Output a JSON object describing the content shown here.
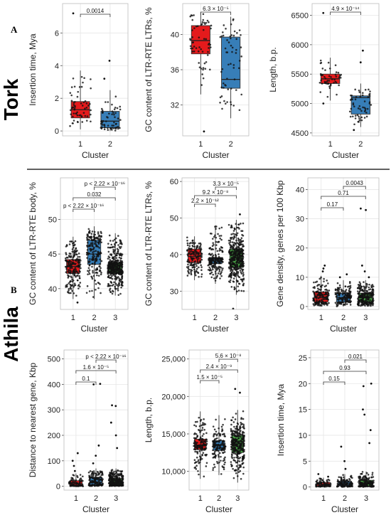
{
  "panel_labels": [
    "A",
    "B"
  ],
  "group_labels": [
    "Tork",
    "Athila"
  ],
  "colors": {
    "cluster_1": "#e41a1c",
    "cluster_2": "#377eb8",
    "cluster_3": "#4daf4a"
  },
  "chart_data": [
    {
      "id": "tork_insertion",
      "type": "box",
      "group": "Tork",
      "xlabel": "Cluster",
      "ylabel": "Insertion time, Mya",
      "categories": [
        "1",
        "2"
      ],
      "ylim": [
        -0.3,
        7.8
      ],
      "yticks": [
        0,
        2,
        4,
        6
      ],
      "ytick_labels": [
        "0",
        "2",
        "4",
        "6"
      ],
      "series": [
        {
          "category": "1",
          "q1": 0.8,
          "median": 1.3,
          "q3": 1.8,
          "whisker_low": 0.1,
          "whisker_high": 3.7,
          "n_points": 60,
          "outliers": [
            7.2
          ]
        },
        {
          "category": "2",
          "q1": 0.2,
          "median": 0.6,
          "q3": 1.2,
          "whisker_low": 0.0,
          "whisker_high": 2.5,
          "n_points": 60,
          "outliers": [
            3.2,
            4.3
          ]
        }
      ],
      "comparisons": [
        {
          "pair": [
            1,
            2
          ],
          "label": "0.0014"
        }
      ]
    },
    {
      "id": "tork_gc_ltr",
      "type": "box",
      "group": "Tork",
      "xlabel": "Cluster",
      "ylabel": "GC content of LTR-RTE LTRs, %",
      "categories": [
        "1",
        "2"
      ],
      "ylim": [
        28.5,
        43.5
      ],
      "yticks": [
        32,
        36,
        40
      ],
      "ytick_labels": [
        "32",
        "36",
        "40"
      ],
      "series": [
        {
          "category": "1",
          "q1": 37.8,
          "median": 39.3,
          "q3": 41.0,
          "whisker_low": 33.2,
          "whisker_high": 42.5,
          "n_points": 60,
          "outliers": [
            29.0
          ]
        },
        {
          "category": "2",
          "q1": 33.9,
          "median": 34.9,
          "q3": 39.7,
          "whisker_low": 30.5,
          "whisker_high": 42.0,
          "n_points": 60,
          "outliers": []
        }
      ],
      "comparisons": [
        {
          "pair": [
            1,
            2
          ],
          "label": "6.3 × 10⁻⁵"
        }
      ]
    },
    {
      "id": "tork_length",
      "type": "box",
      "group": "Tork",
      "xlabel": "Cluster",
      "ylabel": "Length, b.p.",
      "categories": [
        "1",
        "2"
      ],
      "ylim": [
        4450,
        6700
      ],
      "yticks": [
        4500,
        5000,
        5500,
        6000,
        6500
      ],
      "ytick_labels": [
        "4500",
        "5000",
        "5500",
        "6000",
        "6500"
      ],
      "series": [
        {
          "category": "1",
          "q1": 5340,
          "median": 5420,
          "q3": 5500,
          "whisker_low": 5050,
          "whisker_high": 5780,
          "n_points": 50,
          "outliers": [
            6540,
            5000
          ]
        },
        {
          "category": "2",
          "q1": 4820,
          "median": 5100,
          "q3": 5130,
          "whisker_low": 4600,
          "whisker_high": 5340,
          "n_points": 55,
          "outliers": [
            5900,
            5700,
            4550
          ]
        }
      ],
      "comparisons": [
        {
          "pair": [
            1,
            2
          ],
          "label": "4.9 × 10⁻¹⁴"
        }
      ]
    },
    {
      "id": "athila_gc_body",
      "type": "box",
      "group": "Athila",
      "xlabel": "Cluster",
      "ylabel": "GC content of LTR-RTE body, %",
      "categories": [
        "1",
        "2",
        "3"
      ],
      "ylim": [
        37,
        56
      ],
      "yticks": [
        40,
        45,
        50
      ],
      "ytick_labels": [
        "40",
        "45",
        "50"
      ],
      "series": [
        {
          "category": "1",
          "q1": 42.2,
          "median": 43.2,
          "q3": 44.2,
          "whisker_low": 38.5,
          "whisker_high": 47.5,
          "n_points": 200,
          "outliers": [
            38.0
          ]
        },
        {
          "category": "2",
          "q1": 43.5,
          "median": 45.0,
          "q3": 47.0,
          "whisker_low": 38.5,
          "whisker_high": 49.0,
          "n_points": 200,
          "outliers": []
        },
        {
          "category": "3",
          "q1": 42.2,
          "median": 42.8,
          "q3": 43.8,
          "whisker_low": 39.0,
          "whisker_high": 48.0,
          "n_points": 400,
          "outliers": []
        }
      ],
      "comparisons": [
        {
          "pair": [
            1,
            2
          ],
          "label": "p < 2.22 × 10⁻¹⁶"
        },
        {
          "pair": [
            1,
            3
          ],
          "label": "0.032"
        },
        {
          "pair": [
            2,
            3
          ],
          "label": "p < 2.22 × 10⁻¹⁶"
        }
      ]
    },
    {
      "id": "athila_gc_ltr",
      "type": "box",
      "group": "Athila",
      "xlabel": "Cluster",
      "ylabel": "GC content of LTR-RTE LTRs, %",
      "categories": [
        "1",
        "2",
        "3"
      ],
      "ylim": [
        25,
        61
      ],
      "yticks": [
        30,
        40,
        50,
        60
      ],
      "ytick_labels": [
        "30",
        "40",
        "50",
        "60"
      ],
      "series": [
        {
          "category": "1",
          "q1": 37.8,
          "median": 39.5,
          "q3": 41.5,
          "whisker_low": 33.0,
          "whisker_high": 45.0,
          "n_points": 150,
          "outliers": []
        },
        {
          "category": "2",
          "q1": 37.5,
          "median": 38.4,
          "q3": 39.2,
          "whisker_low": 32.0,
          "whisker_high": 48.0,
          "n_points": 200,
          "outliers": []
        },
        {
          "category": "3",
          "q1": 36.5,
          "median": 38.6,
          "q3": 41.5,
          "whisker_low": 29.0,
          "whisker_high": 49.5,
          "n_points": 400,
          "outliers": [
            25.2,
            51.0
          ]
        }
      ],
      "comparisons": [
        {
          "pair": [
            1,
            2
          ],
          "label": "2.2 × 10⁻¹²"
        },
        {
          "pair": [
            1,
            3
          ],
          "label": "9.2 × 10⁻⁸"
        },
        {
          "pair": [
            2,
            3
          ],
          "label": "3.3 × 10⁻⁵"
        }
      ]
    },
    {
      "id": "athila_gene_density",
      "type": "box",
      "group": "Athila",
      "xlabel": "Cluster",
      "ylabel": "Gene density, genes per 100 Kbp",
      "categories": [
        "1",
        "2",
        "3"
      ],
      "ylim": [
        -1,
        44
      ],
      "yticks": [
        0,
        10,
        20,
        30,
        40
      ],
      "ytick_labels": [
        "0",
        "10",
        "20",
        "30",
        "40"
      ],
      "series": [
        {
          "category": "1",
          "q1": 1.5,
          "median": 3.0,
          "q3": 5.0,
          "whisker_low": 0,
          "whisker_high": 10.5,
          "n_points": 150,
          "outliers": [
            12,
            13,
            14
          ]
        },
        {
          "category": "2",
          "q1": 1.5,
          "median": 3.0,
          "q3": 4.5,
          "whisker_low": 0,
          "whisker_high": 9.0,
          "n_points": 150,
          "outliers": [
            10,
            11
          ]
        },
        {
          "category": "3",
          "q1": 1.5,
          "median": 3.0,
          "q3": 4.5,
          "whisker_low": 0,
          "whisker_high": 9.0,
          "n_points": 250,
          "outliers": [
            10,
            12,
            14,
            33,
            33.5
          ]
        }
      ],
      "comparisons": [
        {
          "pair": [
            1,
            2
          ],
          "label": "0.17"
        },
        {
          "pair": [
            1,
            3
          ],
          "label": "0.71"
        },
        {
          "pair": [
            2,
            3
          ],
          "label": "0.0043"
        }
      ]
    },
    {
      "id": "athila_distance",
      "type": "box",
      "group": "Athila",
      "xlabel": "Cluster",
      "ylabel": "Distance to nearest gene, Kbp",
      "categories": [
        "1",
        "2",
        "3"
      ],
      "ylim": [
        -15,
        535
      ],
      "yticks": [
        0,
        100,
        200,
        300,
        400,
        500
      ],
      "ytick_labels": [
        "0",
        "100",
        "200",
        "300",
        "400",
        "500"
      ],
      "series": [
        {
          "category": "1",
          "q1": 3,
          "median": 10,
          "q3": 22,
          "whisker_low": 0,
          "whisker_high": 50,
          "n_points": 80,
          "outliers": [
            60,
            80,
            100,
            130
          ]
        },
        {
          "category": "2",
          "q1": 5,
          "median": 15,
          "q3": 35,
          "whisker_low": 0,
          "whisker_high": 70,
          "n_points": 150,
          "outliers": [
            90,
            120,
            160,
            400,
            402
          ]
        },
        {
          "category": "3",
          "q1": 5,
          "median": 12,
          "q3": 30,
          "whisker_low": 0,
          "whisker_high": 70,
          "n_points": 300,
          "outliers": [
            150,
            200,
            250,
            315,
            318
          ]
        }
      ],
      "comparisons": [
        {
          "pair": [
            1,
            2
          ],
          "label": "0.1"
        },
        {
          "pair": [
            1,
            3
          ],
          "label": "1.6 × 10⁻⁵"
        },
        {
          "pair": [
            2,
            3
          ],
          "label": "p < 2.22 × 10⁻¹⁶"
        }
      ]
    },
    {
      "id": "athila_length",
      "type": "box",
      "group": "Athila",
      "xlabel": "Cluster",
      "ylabel": "Length, b.p.",
      "categories": [
        "1",
        "2",
        "3"
      ],
      "ylim": [
        7500,
        26200
      ],
      "yticks": [
        10000,
        15000,
        20000,
        25000
      ],
      "ytick_labels": [
        "10,000",
        "15,000",
        "20,000",
        "25,000"
      ],
      "series": [
        {
          "category": "1",
          "q1": 12900,
          "median": 13500,
          "q3": 14300,
          "whisker_low": 9000,
          "whisker_high": 18000,
          "n_points": 150,
          "outliers": []
        },
        {
          "category": "2",
          "q1": 12800,
          "median": 13500,
          "q3": 14100,
          "whisker_low": 9500,
          "whisker_high": 17500,
          "n_points": 150,
          "outliers": []
        },
        {
          "category": "3",
          "q1": 12500,
          "median": 13400,
          "q3": 14800,
          "whisker_low": 8500,
          "whisker_high": 18200,
          "n_points": 300,
          "outliers": [
            20500,
            21000
          ]
        }
      ],
      "comparisons": [
        {
          "pair": [
            1,
            2
          ],
          "label": "1.5 × 10⁻⁵"
        },
        {
          "pair": [
            1,
            3
          ],
          "label": "2.4 × 10⁻⁹"
        },
        {
          "pair": [
            2,
            3
          ],
          "label": "5.6 × 10⁻⁸"
        }
      ]
    },
    {
      "id": "athila_insertion",
      "type": "box",
      "group": "Athila",
      "xlabel": "Cluster",
      "ylabel": "Insertion time, Mya",
      "categories": [
        "1",
        "2",
        "3"
      ],
      "ylim": [
        -0.6,
        26.5
      ],
      "yticks": [
        0,
        5,
        10,
        15,
        20,
        25
      ],
      "ytick_labels": [
        "0",
        "5",
        "10",
        "15",
        "20",
        "25"
      ],
      "series": [
        {
          "category": "1",
          "q1": 0.2,
          "median": 0.5,
          "q3": 0.9,
          "whisker_low": 0,
          "whisker_high": 1.8,
          "n_points": 80,
          "outliers": [
            2.0,
            2.5
          ]
        },
        {
          "category": "2",
          "q1": 0.2,
          "median": 0.6,
          "q3": 1.1,
          "whisker_low": 0,
          "whisker_high": 2.5,
          "n_points": 120,
          "outliers": [
            3.5,
            5.0,
            7.8
          ]
        },
        {
          "category": "3",
          "q1": 0.2,
          "median": 0.6,
          "q3": 1.3,
          "whisker_low": 0,
          "whisker_high": 3.0,
          "n_points": 150,
          "outliers": [
            8.5,
            11,
            14,
            15,
            19.5,
            20
          ]
        }
      ],
      "comparisons": [
        {
          "pair": [
            1,
            2
          ],
          "label": "0.15"
        },
        {
          "pair": [
            1,
            3
          ],
          "label": "0.93"
        },
        {
          "pair": [
            2,
            3
          ],
          "label": "0.021"
        }
      ]
    }
  ]
}
